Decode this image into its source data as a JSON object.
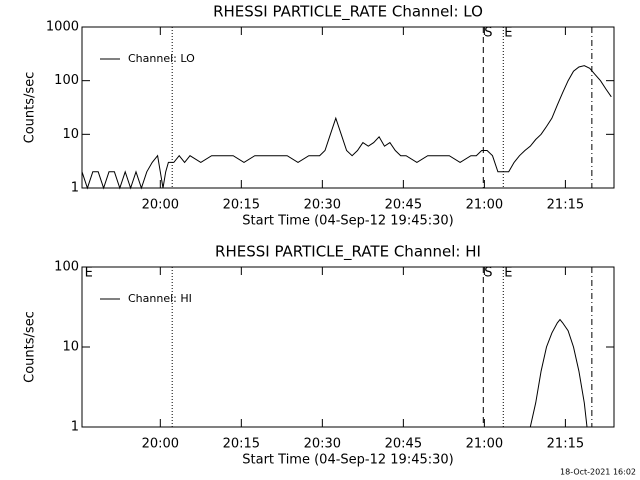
{
  "chart_data": [
    {
      "type": "line",
      "title": "RHESSI PARTICLE_RATE Channel: LO",
      "xlabel": "Start Time (04-Sep-12 19:45:30)",
      "ylabel": "Counts/sec",
      "log_y": true,
      "legend": "upper left",
      "xlim": [
        0,
        98.5
      ],
      "xticks": [
        {
          "value": 14.5,
          "label": "20:00"
        },
        {
          "value": 29.5,
          "label": "20:15"
        },
        {
          "value": 44.5,
          "label": "20:30"
        },
        {
          "value": 59.5,
          "label": "20:45"
        },
        {
          "value": 74.5,
          "label": "21:00"
        },
        {
          "value": 89.5,
          "label": "21:15"
        }
      ],
      "ylim": [
        1,
        1000
      ],
      "yticks": [
        1,
        10,
        100,
        1000
      ],
      "x": [
        0,
        1,
        2,
        3,
        4,
        5,
        6,
        7,
        8,
        9,
        10,
        11,
        12,
        13,
        14,
        14.5,
        15,
        15.5,
        16,
        17,
        18,
        19,
        20,
        22,
        24,
        26,
        28,
        30,
        32,
        34,
        36,
        38,
        40,
        42,
        44,
        45,
        46,
        47,
        48,
        49,
        50,
        51,
        52,
        53,
        54,
        55,
        56,
        57,
        58,
        59,
        60,
        62,
        64,
        66,
        68,
        70,
        72,
        73,
        74,
        75,
        76,
        77,
        78,
        79,
        80,
        81,
        82,
        83,
        84,
        85,
        86,
        87,
        88,
        89,
        90,
        91,
        92,
        93,
        94,
        95,
        96,
        97,
        98
      ],
      "series": [
        {
          "name": "Channel: LO",
          "color": "#000000",
          "values": [
            2,
            1,
            2,
            2,
            1,
            2,
            2,
            1,
            2,
            1,
            2,
            1,
            2,
            3,
            4,
            2,
            1,
            2,
            3,
            3,
            4,
            3,
            4,
            3,
            4,
            4,
            4,
            3,
            4,
            4,
            4,
            4,
            3,
            4,
            4,
            5,
            10,
            20,
            10,
            5,
            4,
            5,
            7,
            6,
            7,
            9,
            6,
            7,
            5,
            4,
            4,
            3,
            4,
            4,
            4,
            3,
            4,
            4,
            5,
            5,
            4,
            2,
            2,
            2,
            3,
            4,
            5,
            6,
            8,
            10,
            14,
            20,
            35,
            60,
            100,
            150,
            180,
            190,
            170,
            130,
            100,
            70,
            50
          ]
        }
      ],
      "markers": [
        {
          "x": 16.7,
          "style": "dotted"
        },
        {
          "x": 74.3,
          "style": "dashed",
          "label": "S"
        },
        {
          "x": 78,
          "style": "dotted",
          "label": "E"
        },
        {
          "x": 94.4,
          "style": "dashdot"
        }
      ]
    },
    {
      "type": "line",
      "title": "RHESSI PARTICLE_RATE Channel: HI",
      "xlabel": "Start Time (04-Sep-12 19:45:30)",
      "ylabel": "Counts/sec",
      "log_y": true,
      "legend": "upper left",
      "xlim": [
        0,
        98.5
      ],
      "xticks": [
        {
          "value": 14.5,
          "label": "20:00"
        },
        {
          "value": 29.5,
          "label": "20:15"
        },
        {
          "value": 44.5,
          "label": "20:30"
        },
        {
          "value": 59.5,
          "label": "20:45"
        },
        {
          "value": 74.5,
          "label": "21:00"
        },
        {
          "value": 89.5,
          "label": "21:15"
        }
      ],
      "ylim": [
        1,
        100
      ],
      "yticks": [
        1,
        10,
        100
      ],
      "x": [
        83,
        84,
        85,
        86,
        87,
        88,
        88.5,
        89,
        90,
        91,
        92,
        93,
        93.5
      ],
      "series": [
        {
          "name": "Channel: HI",
          "color": "#000000",
          "values": [
            1,
            2,
            5,
            10,
            15,
            20,
            22,
            20,
            16,
            10,
            5,
            2,
            1
          ]
        }
      ],
      "markers": [
        {
          "x": 0.3,
          "style": "none",
          "label": "E"
        },
        {
          "x": 16.7,
          "style": "dotted"
        },
        {
          "x": 74.3,
          "style": "dashed",
          "label": "S"
        },
        {
          "x": 78,
          "style": "dotted",
          "label": "E"
        },
        {
          "x": 94.4,
          "style": "dashdot"
        }
      ]
    }
  ],
  "footer": "18-Oct-2021 16:02"
}
